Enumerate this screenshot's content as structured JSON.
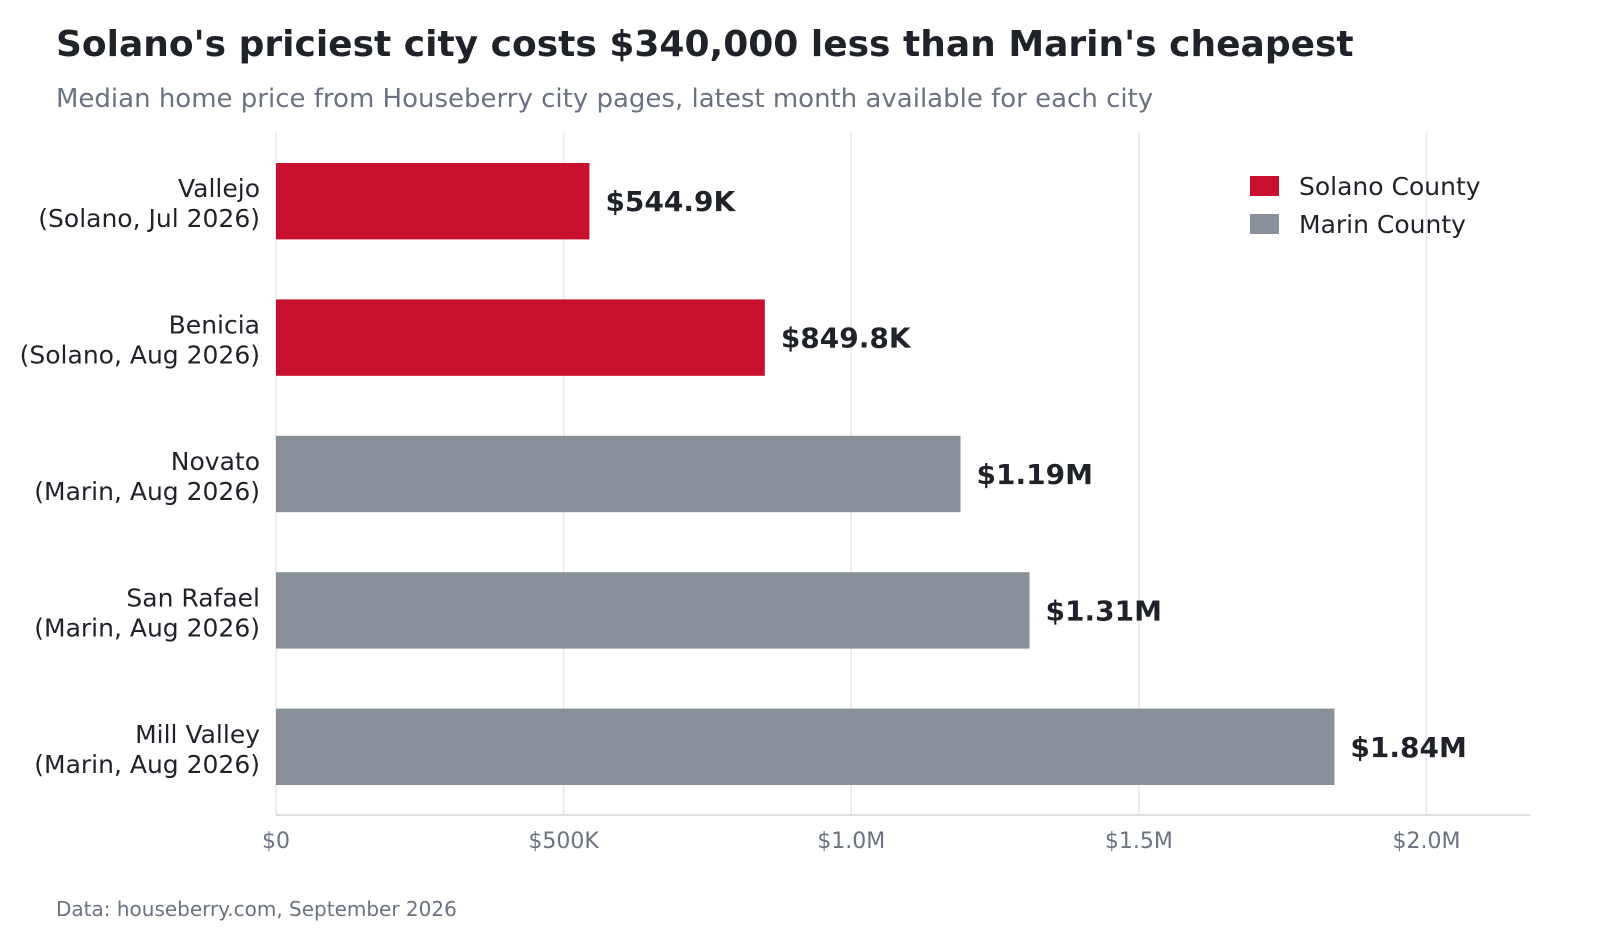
{
  "chart_data": {
    "type": "bar",
    "orientation": "horizontal",
    "title": "Solano's priciest city costs $340,000 less than Marin's cheapest",
    "subtitle": "Median home price from Houseberry city pages, latest month available for each city",
    "source": "Data: houseberry.com, September 2026",
    "categories": [
      {
        "name": "Vallejo",
        "detail": "(Solano, Jul 2026)",
        "county": "Solano County",
        "value": 544900,
        "label": "$544.9K"
      },
      {
        "name": "Benicia",
        "detail": "(Solano, Aug 2026)",
        "county": "Solano County",
        "value": 849800,
        "label": "$849.8K"
      },
      {
        "name": "Novato",
        "detail": "(Marin, Aug 2026)",
        "county": "Marin County",
        "value": 1190000,
        "label": "$1.19M"
      },
      {
        "name": "San Rafael",
        "detail": "(Marin, Aug 2026)",
        "county": "Marin County",
        "value": 1310000,
        "label": "$1.31M"
      },
      {
        "name": "Mill Valley",
        "detail": "(Marin, Aug 2026)",
        "county": "Marin County",
        "value": 1840000,
        "label": "$1.84M"
      }
    ],
    "xlim": [
      0,
      2180000
    ],
    "ticks": [
      {
        "value": 0,
        "label": "$0"
      },
      {
        "value": 500000,
        "label": "$500K"
      },
      {
        "value": 1000000,
        "label": "$1.0M"
      },
      {
        "value": 1500000,
        "label": "$1.5M"
      },
      {
        "value": 2000000,
        "label": "$2.0M"
      }
    ],
    "grid": "vertical",
    "legend": {
      "placement": "top-right",
      "entries": [
        {
          "name": "Solano County",
          "color": "#c8102e"
        },
        {
          "name": "Marin County",
          "color": "#8a9099"
        }
      ]
    }
  }
}
